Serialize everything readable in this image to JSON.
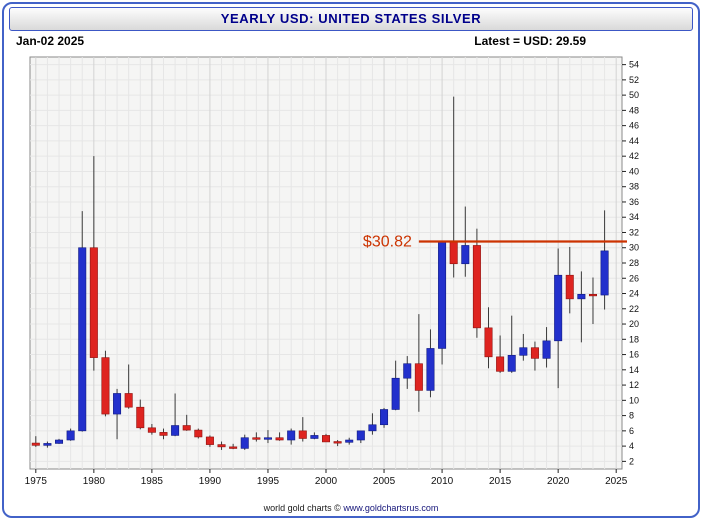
{
  "title_bar": {
    "title": "YEARLY USD: UNITED STATES SILVER"
  },
  "header": {
    "date": "Jan-02 2025",
    "latest": "Latest = USD: 29.59"
  },
  "footer": {
    "credit": "world gold charts ©",
    "url": "www.goldchartsrus.com"
  },
  "ui_colors": {
    "frame_border": "#4262c8",
    "title_text": "#00008b"
  },
  "chart_data": {
    "type": "candlestick",
    "title": "YEARLY USD: UNITED STATES SILVER",
    "timeframe": "yearly",
    "latest_close": 29.59,
    "x_axis": {
      "ticks": [
        1975,
        1980,
        1985,
        1990,
        1995,
        2000,
        2005,
        2010,
        2015,
        2020,
        2025
      ]
    },
    "y_axis": {
      "range": [
        1,
        55
      ],
      "tick_start": 2,
      "tick_end": 54,
      "tick_step": 2,
      "side": "right"
    },
    "colors": {
      "up": "#2230cc",
      "down": "#de2420",
      "up_edge": "#101a80",
      "down_edge": "#8e120f",
      "wick": "#3a3a3a",
      "grid": "#e6e6e6",
      "grid_major": "#d3d3d3",
      "plot_bg": "#f5f5f4",
      "plot_border": "#8a8a8a",
      "axis_text": "#111111"
    },
    "annotation": {
      "label": "$30.82",
      "value": 30.82,
      "start_year": 2008,
      "color": "#cc3300"
    },
    "candles": {
      "columns": [
        "year",
        "open",
        "high",
        "low",
        "close"
      ],
      "rows": [
        [
          1975,
          4.4,
          5.3,
          3.9,
          4.1
        ],
        [
          1976,
          4.1,
          4.6,
          3.8,
          4.35
        ],
        [
          1977,
          4.35,
          4.95,
          4.3,
          4.8
        ],
        [
          1978,
          4.8,
          6.3,
          4.7,
          6.0
        ],
        [
          1979,
          6.0,
          34.8,
          5.9,
          30.0
        ],
        [
          1980,
          30.0,
          42.0,
          13.9,
          15.6
        ],
        [
          1981,
          15.6,
          16.5,
          7.9,
          8.2
        ],
        [
          1982,
          8.2,
          11.5,
          4.9,
          10.9
        ],
        [
          1983,
          10.9,
          14.7,
          8.9,
          9.1
        ],
        [
          1984,
          9.1,
          10.1,
          6.2,
          6.4
        ],
        [
          1985,
          6.4,
          6.9,
          5.5,
          5.8
        ],
        [
          1986,
          5.8,
          6.3,
          4.9,
          5.4
        ],
        [
          1987,
          5.4,
          10.9,
          5.3,
          6.7
        ],
        [
          1988,
          6.7,
          8.1,
          6.0,
          6.1
        ],
        [
          1989,
          6.1,
          6.3,
          5.0,
          5.2
        ],
        [
          1990,
          5.2,
          5.4,
          3.9,
          4.2
        ],
        [
          1991,
          4.2,
          4.6,
          3.5,
          3.9
        ],
        [
          1992,
          3.9,
          4.3,
          3.6,
          3.7
        ],
        [
          1993,
          3.7,
          5.5,
          3.5,
          5.1
        ],
        [
          1994,
          5.1,
          5.8,
          4.6,
          4.9
        ],
        [
          1995,
          4.9,
          6.1,
          4.4,
          5.1
        ],
        [
          1996,
          5.1,
          5.8,
          4.7,
          4.8
        ],
        [
          1997,
          4.8,
          6.3,
          4.2,
          6.0
        ],
        [
          1998,
          6.0,
          7.8,
          4.6,
          5.0
        ],
        [
          1999,
          5.0,
          5.8,
          4.9,
          5.4
        ],
        [
          2000,
          5.4,
          5.6,
          4.6,
          4.55
        ],
        [
          2001,
          4.6,
          4.8,
          4.0,
          4.5
        ],
        [
          2002,
          4.5,
          5.1,
          4.2,
          4.8
        ],
        [
          2003,
          4.8,
          6.0,
          4.4,
          6.0
        ],
        [
          2004,
          6.0,
          8.3,
          5.5,
          6.8
        ],
        [
          2005,
          6.8,
          9.0,
          6.4,
          8.8
        ],
        [
          2006,
          8.8,
          15.2,
          8.7,
          12.9
        ],
        [
          2007,
          12.9,
          15.8,
          11.5,
          14.8
        ],
        [
          2008,
          14.8,
          21.3,
          8.5,
          11.3
        ],
        [
          2009,
          11.3,
          19.3,
          10.4,
          16.8
        ],
        [
          2010,
          16.8,
          30.9,
          14.7,
          30.9
        ],
        [
          2011,
          30.9,
          49.8,
          26.1,
          27.9
        ],
        [
          2012,
          27.9,
          35.4,
          26.2,
          30.3
        ],
        [
          2013,
          30.3,
          32.5,
          18.2,
          19.5
        ],
        [
          2014,
          19.5,
          22.2,
          14.2,
          15.7
        ],
        [
          2015,
          15.7,
          18.5,
          13.6,
          13.8
        ],
        [
          2016,
          13.8,
          21.1,
          13.6,
          15.9
        ],
        [
          2017,
          15.9,
          18.7,
          15.2,
          16.9
        ],
        [
          2018,
          16.9,
          17.7,
          13.9,
          15.5
        ],
        [
          2019,
          15.5,
          19.6,
          14.3,
          17.8
        ],
        [
          2020,
          17.8,
          29.9,
          11.6,
          26.4
        ],
        [
          2021,
          26.4,
          30.1,
          21.4,
          23.3
        ],
        [
          2022,
          23.3,
          26.9,
          17.6,
          23.9
        ],
        [
          2023,
          23.9,
          26.1,
          20.0,
          23.8
        ],
        [
          2024,
          23.8,
          34.9,
          21.9,
          29.59
        ]
      ]
    }
  }
}
